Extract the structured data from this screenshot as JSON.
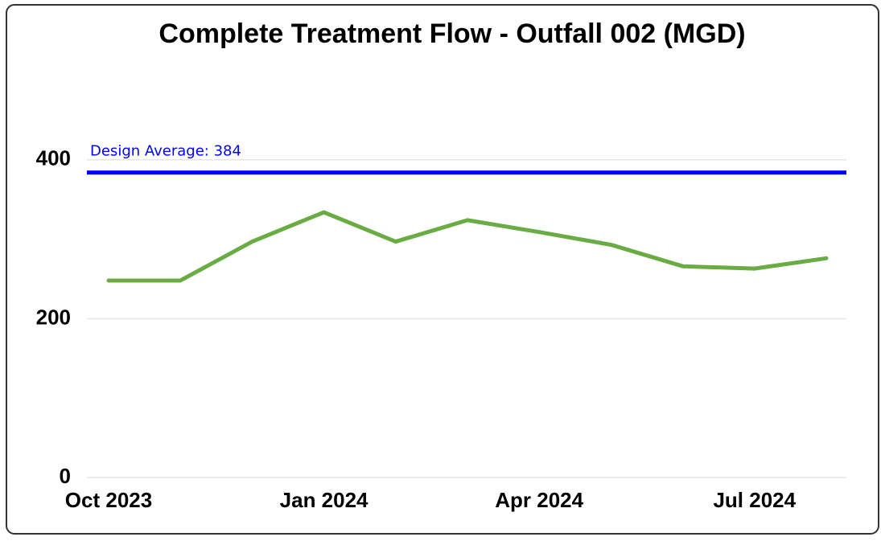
{
  "chart_data": {
    "type": "line",
    "title": "Complete Treatment Flow - Outfall 002 (MGD)",
    "categories": [
      "Oct 2023",
      null,
      null,
      "Jan 2024",
      null,
      null,
      "Apr 2024",
      null,
      null,
      "Jul 2024",
      null
    ],
    "series": [
      {
        "name": "Complete Treatment Flow",
        "color": "#6aac44",
        "values": [
          248,
          248,
          297,
          334,
          297,
          324,
          309,
          293,
          266,
          263,
          276
        ]
      }
    ],
    "reference_line": {
      "label": "Design Average: 384",
      "value": 384,
      "color": "#0000ff"
    },
    "ylim": [
      0,
      500
    ],
    "yticks": [
      0,
      200,
      400
    ],
    "grid": true
  }
}
